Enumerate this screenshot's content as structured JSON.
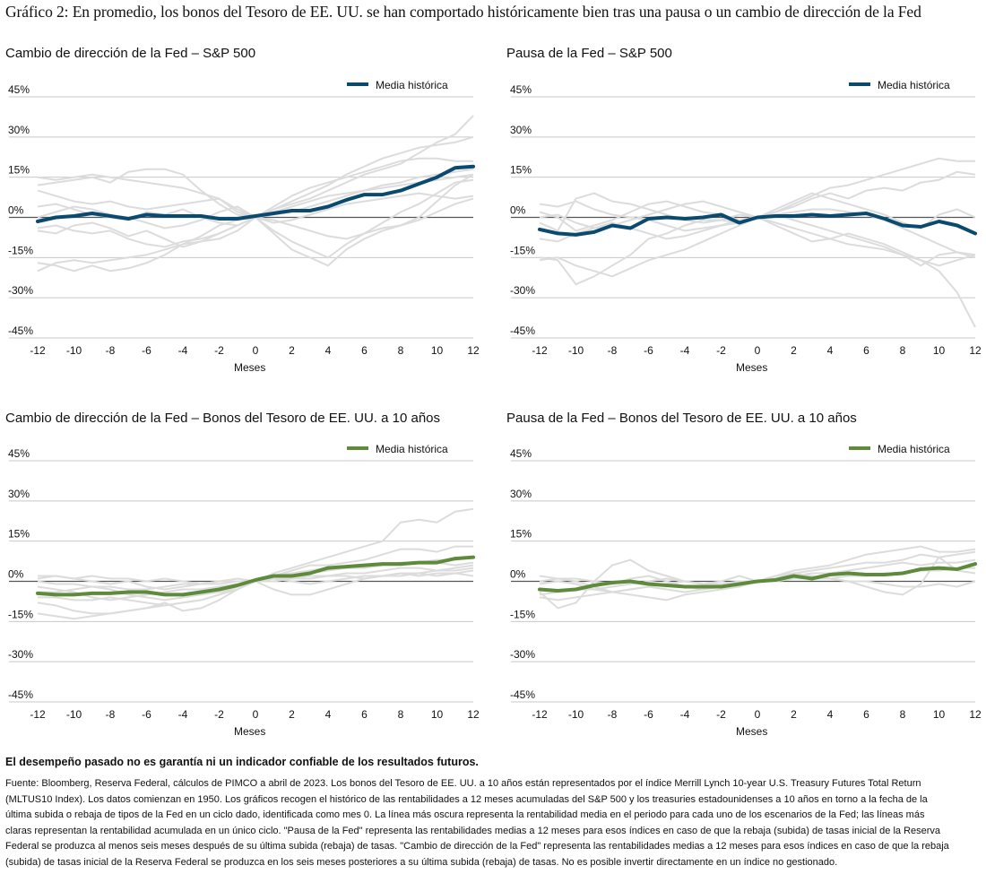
{
  "title": "Gráfico 2: En promedio, los bonos del Tesoro de EE. UU. se han comportado históricamente bien tras una pausa o un cambio de dirección de la Fed",
  "colors": {
    "sp500": "#0b4a6f",
    "treasury": "#5e8a3c",
    "history": "#dcdcdc",
    "zero_line": "#555555",
    "grid": "#c8c8c8"
  },
  "chart_data": [
    {
      "type": "line",
      "title": "Cambio de dirección de la Fed – S&P 500",
      "xlabel": "Meses",
      "ylabel": "",
      "ylim": [
        -45,
        45
      ],
      "xlim": [
        -12,
        12
      ],
      "yticks": [
        "45%",
        "30%",
        "15%",
        "0%",
        "-15%",
        "-30%",
        "-45%"
      ],
      "xticks": [
        "-12",
        "-10",
        "-8",
        "-6",
        "-4",
        "-2",
        "0",
        "2",
        "4",
        "6",
        "8",
        "10",
        "12"
      ],
      "legend": "Media histórica",
      "legend_position": "top-right",
      "x": [
        -12,
        -11,
        -10,
        -9,
        -8,
        -7,
        -6,
        -5,
        -4,
        -3,
        -2,
        -1,
        0,
        1,
        2,
        3,
        4,
        5,
        6,
        7,
        8,
        9,
        10,
        11,
        12
      ],
      "average": [
        -1.5,
        0,
        0.5,
        1.5,
        0.5,
        -0.5,
        1,
        0.5,
        0.5,
        0.5,
        -0.5,
        -0.5,
        0.5,
        1.5,
        2.5,
        2.5,
        4,
        6.5,
        8.5,
        8.5,
        10,
        12.5,
        15,
        18.5,
        19
      ],
      "history": [
        [
          -17,
          -18,
          -20,
          -18,
          -20,
          -19,
          -17,
          -14,
          -10,
          -7,
          -3,
          -1,
          0,
          3,
          5,
          7,
          10,
          13,
          16,
          18,
          20,
          24,
          28,
          31,
          38
        ],
        [
          -5,
          -6,
          -3,
          -2,
          -4,
          -7,
          -5,
          -8,
          -11,
          -9,
          -6,
          -3,
          0,
          3,
          6,
          9,
          12,
          16,
          19,
          22,
          24,
          26,
          27,
          28,
          30
        ],
        [
          12,
          13,
          14,
          15,
          13,
          17,
          18,
          18,
          16,
          10,
          5,
          1,
          0,
          -6,
          -12,
          -15,
          -18,
          -12,
          -8,
          -5,
          -3,
          0,
          6,
          12,
          16
        ],
        [
          4,
          5,
          3,
          1,
          0,
          -1,
          2,
          1,
          3,
          0,
          -2,
          -3,
          0,
          1,
          2,
          4,
          6,
          8,
          10,
          12,
          13,
          15,
          16,
          17,
          18
        ],
        [
          10,
          8,
          6,
          5,
          6,
          4,
          3,
          4,
          5,
          6,
          7,
          2,
          0,
          -5,
          -9,
          -12,
          -15,
          -10,
          -6,
          -2,
          2,
          5,
          9,
          13,
          14
        ],
        [
          15,
          14,
          15,
          16,
          15,
          14,
          13,
          12,
          11,
          9,
          7,
          3,
          0,
          -2,
          -1,
          1,
          3,
          5,
          6,
          7,
          8,
          9,
          8,
          7,
          8
        ],
        [
          -4,
          -3,
          -5,
          -6,
          -5,
          -8,
          -10,
          -11,
          -9,
          -8,
          -6,
          -3,
          0,
          4,
          8,
          11,
          13,
          15,
          17,
          19,
          21,
          22,
          22,
          21,
          21
        ],
        [
          0,
          2,
          4,
          3,
          1,
          0,
          -2,
          -4,
          -3,
          -1,
          2,
          4,
          0,
          -1,
          -3,
          -5,
          -7,
          -8,
          -6,
          -4,
          -3,
          -1,
          2,
          5,
          7
        ],
        [
          -20,
          -17,
          -16,
          -17,
          -16,
          -15,
          -14,
          -12,
          -10,
          -9,
          -8,
          -5,
          0,
          2,
          4,
          6,
          8,
          9,
          10,
          11,
          12,
          13,
          14,
          15,
          16
        ]
      ]
    },
    {
      "type": "line",
      "title": "Pausa de la Fed – S&P 500",
      "xlabel": "Meses",
      "ylabel": "",
      "ylim": [
        -45,
        45
      ],
      "xlim": [
        -12,
        12
      ],
      "yticks": [
        "45%",
        "30%",
        "15%",
        "0%",
        "-15%",
        "-30%",
        "-45%"
      ],
      "xticks": [
        "-12",
        "-10",
        "-8",
        "-6",
        "-4",
        "-2",
        "0",
        "2",
        "4",
        "6",
        "8",
        "10",
        "12"
      ],
      "legend": "Media histórica",
      "legend_position": "top-right",
      "x": [
        -12,
        -11,
        -10,
        -9,
        -8,
        -7,
        -6,
        -5,
        -4,
        -3,
        -2,
        -1,
        0,
        1,
        2,
        3,
        4,
        5,
        6,
        7,
        8,
        9,
        10,
        11,
        12
      ],
      "average": [
        -4.5,
        -6,
        -6.5,
        -5.5,
        -3,
        -4,
        -0.5,
        0,
        -0.5,
        0,
        1,
        -2,
        0,
        0.5,
        0.5,
        1,
        0.5,
        1,
        1.5,
        -0.5,
        -3,
        -3.5,
        -1.5,
        -3,
        -6
      ],
      "history": [
        [
          -15,
          -16,
          -25,
          -22,
          -18,
          -14,
          -8,
          -6,
          -3,
          -1,
          -1,
          1,
          0,
          2,
          5,
          8,
          11,
          12,
          14,
          16,
          18,
          20,
          22,
          21,
          21
        ],
        [
          2,
          0,
          -5,
          -3,
          -1,
          2,
          5,
          6,
          4,
          2,
          1,
          -1,
          0,
          -3,
          -6,
          -9,
          -8,
          -6,
          -8,
          -10,
          -13,
          -16,
          -20,
          -28,
          -41
        ],
        [
          -2,
          -5,
          7,
          9,
          6,
          5,
          3,
          1,
          -1,
          -2,
          -1,
          -2,
          0,
          2,
          4,
          7,
          9,
          7,
          10,
          11,
          10,
          13,
          14,
          17,
          16
        ],
        [
          5,
          4,
          6,
          3,
          1,
          0,
          -1,
          -3,
          -5,
          -4,
          -3,
          -1,
          0,
          1,
          2,
          3,
          3,
          2,
          1,
          -1,
          -4,
          -7,
          -10,
          -13,
          -15
        ],
        [
          -16,
          -15,
          -18,
          -20,
          -22,
          -19,
          -16,
          -14,
          -12,
          -9,
          -6,
          -3,
          0,
          1,
          -1,
          -3,
          -5,
          -7,
          -9,
          -11,
          -14,
          -18,
          -14,
          -13,
          -14
        ],
        [
          0,
          1,
          -2,
          -4,
          -3,
          -1,
          1,
          3,
          5,
          6,
          4,
          2,
          0,
          3,
          6,
          9,
          7,
          5,
          3,
          1,
          -2,
          -4,
          1,
          3,
          0
        ],
        [
          -8,
          -9,
          -6,
          -4,
          -2,
          -4,
          -6,
          -8,
          -7,
          -5,
          -3,
          -2,
          0,
          -2,
          -4,
          -6,
          -8,
          -10,
          -11,
          -12,
          -14,
          -16,
          -18,
          -16,
          -14
        ]
      ]
    },
    {
      "type": "line",
      "title": "Cambio de dirección de la Fed – Bonos del Tesoro de EE. UU. a 10 años",
      "xlabel": "Meses",
      "ylabel": "",
      "ylim": [
        -45,
        45
      ],
      "xlim": [
        -12,
        12
      ],
      "yticks": [
        "45%",
        "30%",
        "15%",
        "0%",
        "-15%",
        "-30%",
        "-45%"
      ],
      "xticks": [
        "-12",
        "-10",
        "-8",
        "-6",
        "-4",
        "-2",
        "0",
        "2",
        "4",
        "6",
        "8",
        "10",
        "12"
      ],
      "legend": "Media histórica",
      "legend_position": "top-right",
      "x": [
        -12,
        -11,
        -10,
        -9,
        -8,
        -7,
        -6,
        -5,
        -4,
        -3,
        -2,
        -1,
        0,
        1,
        2,
        3,
        4,
        5,
        6,
        7,
        8,
        9,
        10,
        11,
        12
      ],
      "average": [
        -4.5,
        -5,
        -5,
        -4.5,
        -4.5,
        -4,
        -4,
        -5,
        -5,
        -4,
        -3,
        -1.5,
        0.5,
        2,
        2,
        3,
        5,
        5.5,
        6,
        6.5,
        6.5,
        7,
        7,
        8.5,
        9
      ],
      "history": [
        [
          -8,
          -9,
          -11,
          -12,
          -12,
          -11,
          -10,
          -9,
          -8,
          -7,
          -5,
          -2,
          0,
          3,
          5,
          7,
          9,
          11,
          13,
          15,
          22,
          23,
          22,
          26,
          27
        ],
        [
          -12,
          -13,
          -14,
          -13,
          -12,
          -11,
          -10,
          -8,
          -11,
          -10,
          -7,
          -3,
          0,
          2,
          4,
          6,
          6,
          7,
          8,
          10,
          12,
          12,
          11,
          13,
          13
        ],
        [
          1,
          2,
          1,
          0,
          -1,
          0,
          -2,
          -3,
          -2,
          -1,
          0,
          1,
          0,
          -3,
          -5,
          -5,
          -3,
          -1,
          1,
          2,
          3,
          3,
          4,
          5,
          6
        ],
        [
          -2,
          -3,
          -4,
          -6,
          -7,
          -6,
          -5,
          -4,
          -3,
          -3,
          -2,
          -1,
          0,
          1,
          2,
          3,
          4,
          5,
          5,
          6,
          7,
          7,
          8,
          8,
          9
        ],
        [
          -6,
          -6,
          -7,
          -7,
          -6,
          -7,
          -8,
          -9,
          -8,
          -7,
          -5,
          -3,
          0,
          1,
          0,
          -1,
          0,
          1,
          2,
          2,
          3,
          2,
          3,
          3,
          4
        ],
        [
          2,
          2,
          1,
          2,
          1,
          1,
          0,
          1,
          0,
          -1,
          -1,
          0,
          0,
          0,
          1,
          1,
          2,
          2,
          1,
          2,
          2,
          3,
          2,
          3,
          2
        ],
        [
          -4,
          -4,
          -3,
          -2,
          -3,
          -5,
          -6,
          -7,
          -6,
          -5,
          -4,
          -2,
          0,
          2,
          3,
          4,
          5,
          5,
          6,
          6,
          6,
          7,
          7,
          6,
          7
        ],
        [
          0,
          -1,
          -1,
          -2,
          -2,
          -3,
          -3,
          -2,
          -1,
          -1,
          0,
          0,
          0,
          1,
          1,
          2,
          2,
          3,
          3,
          4,
          5,
          5,
          4,
          4,
          5
        ]
      ]
    },
    {
      "type": "line",
      "title": "Pausa de la Fed – Bonos del Tesoro de EE. UU. a 10 años",
      "xlabel": "Meses",
      "ylabel": "",
      "ylim": [
        -45,
        45
      ],
      "xlim": [
        -12,
        12
      ],
      "yticks": [
        "45%",
        "30%",
        "15%",
        "0%",
        "-15%",
        "-30%",
        "-45%"
      ],
      "xticks": [
        "-12",
        "-10",
        "-8",
        "-6",
        "-4",
        "-2",
        "0",
        "2",
        "4",
        "6",
        "8",
        "10",
        "12"
      ],
      "legend": "Media histórica",
      "legend_position": "top-right",
      "x": [
        -12,
        -11,
        -10,
        -9,
        -8,
        -7,
        -6,
        -5,
        -4,
        -3,
        -2,
        -1,
        0,
        1,
        2,
        3,
        4,
        5,
        6,
        7,
        8,
        9,
        10,
        11,
        12
      ],
      "average": [
        -3,
        -3.5,
        -3,
        -1.5,
        -0.5,
        0,
        -1,
        -1.5,
        -2,
        -2,
        -2,
        -1,
        0,
        0.5,
        2,
        1,
        2.5,
        3,
        2.5,
        2.5,
        3,
        4.5,
        5,
        4.5,
        6.5
      ],
      "history": [
        [
          -4,
          -10,
          -8,
          0,
          6,
          8,
          4,
          2,
          0,
          -1,
          0,
          2,
          0,
          2,
          4,
          5,
          6,
          8,
          10,
          11,
          12,
          13,
          11,
          11,
          12
        ],
        [
          2,
          1,
          0,
          -2,
          -4,
          -5,
          -6,
          -7,
          -5,
          -4,
          -3,
          -2,
          0,
          1,
          2,
          3,
          3,
          4,
          5,
          6,
          7,
          6,
          7,
          7,
          8
        ],
        [
          -6,
          -7,
          -6,
          -5,
          -4,
          -3,
          -2,
          -1,
          0,
          -1,
          -2,
          -1,
          0,
          1,
          2,
          2,
          1,
          0,
          0,
          -1,
          -2,
          -2,
          -1,
          -2,
          0
        ],
        [
          -1,
          0,
          -1,
          -3,
          -4,
          -3,
          -2,
          -3,
          -4,
          -3,
          -2,
          -1,
          0,
          1,
          3,
          4,
          5,
          6,
          7,
          7,
          8,
          10,
          9,
          10,
          11
        ],
        [
          0,
          1,
          1,
          0,
          -1,
          1,
          2,
          0,
          -2,
          -3,
          -2,
          -1,
          0,
          2,
          3,
          2,
          1,
          0,
          -2,
          -4,
          -5,
          -1,
          9,
          4,
          3
        ],
        [
          -5,
          -4,
          -3,
          -3,
          -2,
          -1,
          0,
          1,
          0,
          -1,
          -1,
          0,
          0,
          0,
          1,
          1,
          1,
          2,
          2,
          3,
          3,
          4,
          4,
          5,
          5
        ]
      ]
    }
  ],
  "disclaimer": "El desempeño pasado no es garantía ni un indicador confiable de los resultados futuros.",
  "notes": [
    "Fuente: Bloomberg, Reserva Federal, cálculos de PIMCO a abril de 2023. Los bonos del Tesoro de EE. UU. a 10 años están representados por el índice Merrill Lynch 10-year U.S. Treasury Futures Total Return",
    "(MLTUS10 Index). Los datos comienzan en 1950. Los gráficos recogen el histórico de las rentabilidades a 12 meses acumuladas del S&P 500 y los treasuries estadounidenses a 10 años en torno a la fecha de la",
    "última subida o rebaja de tipos de la Fed en un ciclo dado, identificada como mes 0. La línea más oscura representa la rentabilidad media en el periodo para cada uno de los escenarios de la Fed; las líneas más",
    "claras representan la rentabilidad acumulada en un único ciclo. \"Pausa de la Fed\" representa las rentabilidades medias a 12 meses para esos índices en caso de que la rebaja (subida) de tasas inicial de la Reserva",
    "Federal se produzca al menos seis meses después de su última subida (rebaja) de tasas. \"Cambio de dirección de la Fed\" representa las rentabilidades medias a 12 meses para esos índices en caso de que la rebaja",
    "(subida) de tasas inicial de la Reserva Federal se produzca en los seis meses posteriores a su última subida (rebaja) de tasas. No es posible invertir directamente en un índice no gestionado."
  ]
}
